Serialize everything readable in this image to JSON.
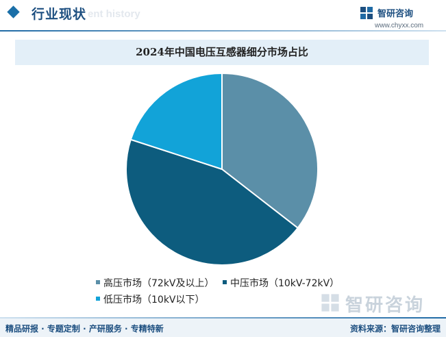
{
  "header": {
    "title": "行业现状",
    "subtitle": "ent history"
  },
  "brand": {
    "name": "智研咨询",
    "url": "www.chyxx.com"
  },
  "watermark": {
    "name": "智研咨询"
  },
  "footer": {
    "left": "精品研报 · 专题定制 · 产研服务 · 专精特新",
    "source": "资料来源：智研咨询整理"
  },
  "colors": {
    "accent": "#1d4f80",
    "high": "#5b8fa8",
    "mid": "#0d5c7e",
    "low": "#12a3d8"
  },
  "chart_data": {
    "type": "pie",
    "title": "2024年中国电压互感器细分市场占比",
    "categories": [
      "高压市场（72kV及以上）",
      "中压市场（10kV-72kV）",
      "低压市场（10kV以下）"
    ],
    "values": [
      35.5,
      44.5,
      20.0
    ],
    "colors": [
      "#5b8fa8",
      "#0d5c7e",
      "#12a3d8"
    ],
    "legend_position": "bottom"
  }
}
